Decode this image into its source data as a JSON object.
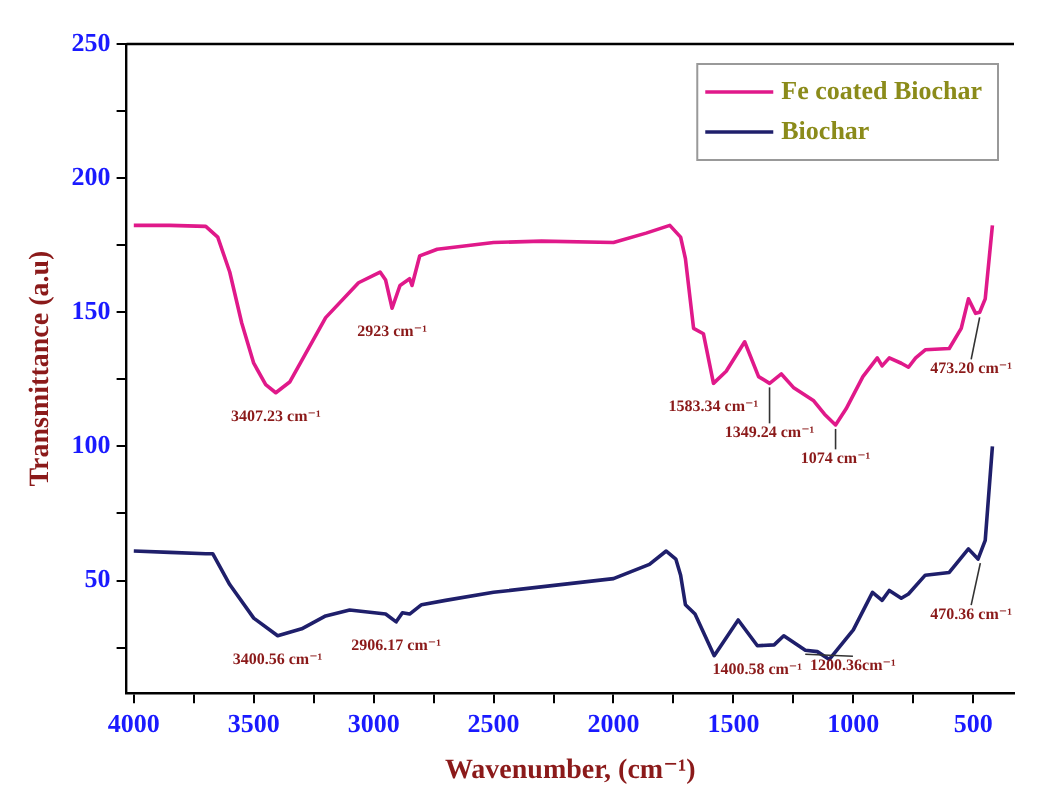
{
  "chart_data": {
    "type": "line",
    "xlabel": "Wavenumber, (cm⁻¹)",
    "ylabel": "Transmittance (a.u)",
    "xlim": [
      4030,
      330
    ],
    "xticks": [
      4000,
      {
        "value": 3750,
        "label": null
      },
      3500,
      {
        "value": 3250,
        "label": null
      },
      3000,
      {
        "value": 2750,
        "label": null
      },
      2500,
      {
        "value": 2250,
        "label": null
      },
      2000,
      {
        "value": 1750,
        "label": null
      },
      1500,
      {
        "value": 1250,
        "label": null
      },
      1000,
      {
        "value": 750,
        "label": null
      },
      500
    ],
    "ylim": [
      8,
      250
    ],
    "yticks": [
      {
        "value": 25,
        "label": null
      },
      50,
      {
        "value": 75,
        "label": null
      },
      100,
      {
        "value": 125,
        "label": null
      },
      150,
      {
        "value": 175,
        "label": null
      },
      200,
      {
        "value": 225,
        "label": null
      },
      250
    ],
    "grid": false,
    "legend": "top right",
    "marker": "none",
    "line_style": "solid",
    "series": [
      {
        "name": "Fe coated Biochar",
        "color": "#e0198a",
        "x": [
          4000,
          3850,
          3700,
          3650,
          3600,
          3550,
          3500,
          3450,
          3408,
          3350,
          3300,
          3200,
          3063,
          2973,
          2950,
          2923,
          2890,
          2850,
          2840,
          2808,
          2735,
          2500,
          2300,
          2000,
          1864,
          1765,
          1720,
          1700,
          1666,
          1625,
          1583,
          1530,
          1453,
          1395,
          1349,
          1300,
          1250,
          1165,
          1120,
          1074,
          1030,
          960,
          900,
          880,
          850,
          800,
          770,
          740,
          700,
          600,
          550,
          520,
          490,
          473,
          450,
          420
        ],
        "values": [
          182.4,
          182.4,
          182,
          178,
          165,
          146,
          131,
          123,
          120,
          124,
          132,
          148,
          161,
          165,
          162,
          151.5,
          160,
          162.5,
          160,
          171,
          173.5,
          176,
          176.5,
          176,
          179.5,
          182.4,
          178,
          170,
          144,
          142,
          123.5,
          128,
          139,
          126,
          123.5,
          127,
          122,
          117,
          112,
          108,
          114,
          126,
          133,
          130,
          133,
          131,
          129.5,
          133,
          136,
          136.5,
          144,
          155,
          149.6,
          150,
          155,
          182.4
        ]
      },
      {
        "name": "Biochar",
        "color": "#1f1f6b",
        "x": [
          4000,
          3850,
          3700,
          3671,
          3600,
          3500,
          3400,
          3300,
          3200,
          3100,
          2950,
          2906,
          2880,
          2850,
          2800,
          2700,
          2500,
          2000,
          1850,
          1780,
          1740,
          1720,
          1700,
          1660,
          1580,
          1480,
          1400,
          1330,
          1290,
          1200,
          1150,
          1100,
          1000,
          920,
          880,
          850,
          800,
          770,
          700,
          600,
          520,
          480,
          450,
          420
        ],
        "values": [
          61,
          60.5,
          60,
          60,
          48.5,
          36,
          29.4,
          32,
          36.8,
          39,
          37.5,
          34.6,
          38,
          37.5,
          41,
          42.6,
          45.6,
          50.7,
          56,
          61,
          58,
          52,
          41,
          37.5,
          22,
          35.3,
          25.7,
          26,
          29.4,
          24,
          23.5,
          20.6,
          31.6,
          45.6,
          42.6,
          46.3,
          43.4,
          45,
          52,
          53,
          61.8,
          58,
          65,
          100
        ]
      }
    ],
    "annotations": [
      {
        "text": "3407.23 cm⁻¹",
        "x": 3407.23,
        "y": 120
      },
      {
        "text": "2923 cm⁻¹",
        "x": 2923,
        "y": 151.5
      },
      {
        "text": "1583.34 cm⁻¹",
        "x": 1583.34,
        "y": 123.5
      },
      {
        "text": "1349.24 cm⁻¹",
        "x": 1349.24,
        "y": 123.5
      },
      {
        "text": "1074 cm⁻¹",
        "x": 1074,
        "y": 108
      },
      {
        "text": "473.20 cm⁻¹",
        "x": 473.2,
        "y": 149.6
      },
      {
        "text": "3400.56 cm⁻¹",
        "x": 3400.56,
        "y": 29.4
      },
      {
        "text": "2906.17 cm⁻¹",
        "x": 2906.17,
        "y": 34.6
      },
      {
        "text": "1400.58 cm⁻¹",
        "x": 1400.58,
        "y": 25.7
      },
      {
        "text": "1200.36cm⁻¹",
        "x": 1200.36,
        "y": 24
      },
      {
        "text": "470.36 cm⁻¹",
        "x": 470.36,
        "y": 58
      }
    ]
  }
}
